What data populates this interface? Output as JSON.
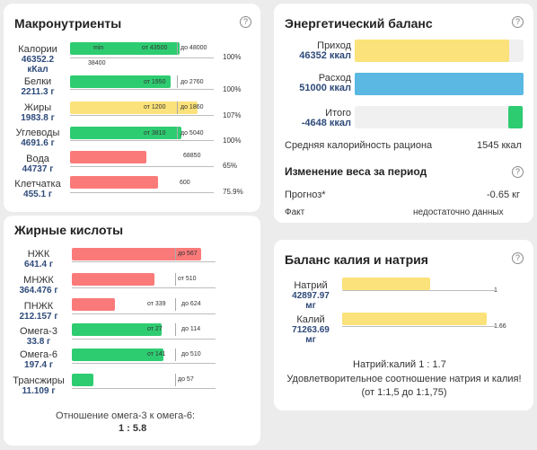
{
  "macro": {
    "title": "Макронутриенты",
    "rows": [
      {
        "name": "Калории",
        "value": "46352.2",
        "unit": "кКал",
        "min_label": "min",
        "from_label": "от 43500",
        "to_label": "до 48000",
        "extra": "38400",
        "pct": "100%"
      },
      {
        "name": "Белки",
        "value": "2211.3 г",
        "from_label": "от 1950",
        "to_label": "до 2760",
        "pct": "100%"
      },
      {
        "name": "Жиры",
        "value": "1983.8 г",
        "from_label": "от 1200",
        "to_label": "до 1860",
        "pct": "107%"
      },
      {
        "name": "Углеводы",
        "value": "4691.6 г",
        "from_label": "от 3810",
        "to_label": "до 5040",
        "pct": "100%"
      },
      {
        "name": "Вода",
        "value": "44737 г",
        "to_label": "68850",
        "pct": "65%"
      },
      {
        "name": "Клетчатка",
        "value": "455.1 г",
        "to_label": "600",
        "pct": "75.9%"
      }
    ]
  },
  "energy": {
    "title": "Энергетический баланс",
    "rows": [
      {
        "name": "Приход",
        "value": "46352 ккал",
        "fill": 0.92
      },
      {
        "name": "Расход",
        "value": "51000 ккал",
        "fill": 1.0
      },
      {
        "name": "Итого",
        "value": "-4648 ккал",
        "fill": 0.09
      }
    ],
    "avg_label": "Средняя калорийность рациона",
    "avg_value": "1545 ккал",
    "weight_title": "Изменение веса за период",
    "forecast_label": "Прогноз*",
    "forecast_value": "-0.65 кг",
    "fact_label": "Факт",
    "fact_value": "недостаточно данных"
  },
  "fats": {
    "title": "Жирные кислоты",
    "rows": [
      {
        "name": "НЖК",
        "value": "641.4 г",
        "to_label": "до 567"
      },
      {
        "name": "МНЖК",
        "value": "364.476 г",
        "to_label": "от 510"
      },
      {
        "name": "ПНЖК",
        "value": "212.157 г",
        "from_label": "от 339",
        "to_label": "до 624"
      },
      {
        "name": "Омега-3",
        "value": "33.8 г",
        "from_label": "от 27",
        "to_label": "до 114"
      },
      {
        "name": "Омега-6",
        "value": "197.4 г",
        "from_label": "от 141",
        "to_label": "до 510"
      },
      {
        "name": "Трансжиры",
        "value": "11.109 г",
        "to_label": "до 57"
      }
    ],
    "ratio_label": "Отношение омега-3 к омега-6:",
    "ratio_value": "1 : 5.8"
  },
  "kna": {
    "title": "Баланс калия и натрия",
    "rows": [
      {
        "name": "Натрий",
        "value": "42897.97",
        "unit": "мг",
        "marker": "1"
      },
      {
        "name": "Калий",
        "value": "71263.69",
        "unit": "мг",
        "marker": "1.66"
      }
    ],
    "ratio": "Натрий:калий 1 : 1.7",
    "note": "Удовлетворительное соотношение натрия и калия! (от 1:1,5 до 1:1,75)"
  },
  "help_glyph": "?",
  "colors": {
    "green": "#2ecc71",
    "yellow": "#fbe27a",
    "red": "#fa7a7a",
    "blue": "#5ab8e3",
    "value_text": "#2e4a7a"
  }
}
